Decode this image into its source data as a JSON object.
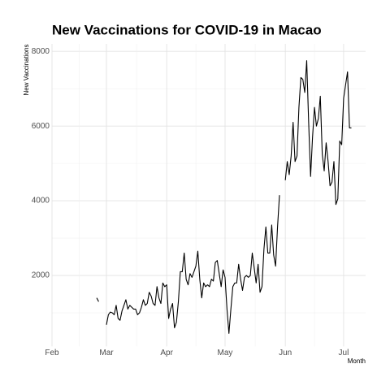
{
  "chart_data": {
    "type": "line",
    "title": "New Vaccinations for COVID-19 in Macao",
    "y_label": "New Vaccinations",
    "x_label": "Month",
    "color": "#000000",
    "grid": true,
    "ylim": [
      100,
      8200
    ],
    "yticks": [
      2000,
      4000,
      6000,
      8000
    ],
    "categories": [
      "Feb",
      null,
      null,
      null,
      null,
      null,
      null,
      null,
      null,
      null,
      null,
      null,
      null,
      null,
      null,
      null,
      null,
      null,
      null,
      null,
      null,
      null,
      null,
      null,
      null,
      null,
      null,
      null,
      "Mar",
      null,
      null,
      null,
      null,
      null,
      null,
      null,
      null,
      null,
      null,
      null,
      null,
      null,
      null,
      null,
      null,
      null,
      null,
      null,
      null,
      null,
      null,
      null,
      null,
      null,
      null,
      null,
      null,
      null,
      null,
      "Apr",
      null,
      null,
      null,
      null,
      null,
      null,
      null,
      null,
      null,
      null,
      null,
      null,
      null,
      null,
      null,
      null,
      null,
      null,
      null,
      null,
      null,
      null,
      null,
      null,
      null,
      null,
      null,
      null,
      null,
      "May",
      null,
      null,
      null,
      null,
      null,
      null,
      null,
      null,
      null,
      null,
      null,
      null,
      null,
      null,
      null,
      null,
      null,
      null,
      null,
      null,
      null,
      null,
      null,
      null,
      null,
      null,
      null,
      null,
      null,
      null,
      "Jun",
      null,
      null,
      null,
      null,
      null,
      null,
      null,
      null,
      null,
      null,
      null,
      null,
      null,
      null,
      null,
      null,
      null,
      null,
      null,
      null,
      null,
      null,
      null,
      null,
      null,
      null,
      null,
      null,
      null,
      "Jul",
      null,
      null,
      null,
      null
    ],
    "values": [
      null,
      null,
      null,
      null,
      null,
      null,
      null,
      null,
      null,
      null,
      null,
      null,
      null,
      null,
      null,
      null,
      null,
      null,
      null,
      null,
      null,
      null,
      null,
      1400,
      1300,
      null,
      null,
      null,
      680,
      950,
      1020,
      1000,
      950,
      1200,
      850,
      800,
      1050,
      1200,
      1350,
      1100,
      1200,
      1150,
      1100,
      1100,
      950,
      1000,
      1150,
      1350,
      1200,
      1250,
      1550,
      1450,
      1250,
      1200,
      1700,
      1400,
      1250,
      1800,
      1700,
      1750,
      850,
      1100,
      1250,
      600,
      750,
      1300,
      2100,
      2100,
      2600,
      1900,
      1750,
      2050,
      1950,
      2100,
      2250,
      2650,
      1900,
      1400,
      1800,
      1700,
      1750,
      1700,
      1900,
      1850,
      2350,
      2400,
      2050,
      1700,
      2150,
      1950,
      1100,
      450,
      1100,
      1700,
      1800,
      1800,
      2300,
      1900,
      1600,
      1950,
      2000,
      1950,
      2000,
      2600,
      2200,
      1800,
      2300,
      1550,
      1700,
      2700,
      3300,
      2600,
      2600,
      3350,
      2550,
      2250,
      3300,
      4150,
      null,
      null,
      4550,
      5050,
      4700,
      5200,
      6100,
      5050,
      5200,
      6500,
      7300,
      7250,
      6900,
      7750,
      6100,
      4650,
      5700,
      6500,
      6000,
      6200,
      6800,
      5250,
      4800,
      5550,
      5050,
      4400,
      4500,
      5050,
      3900,
      4050,
      5600,
      5500,
      6750,
      7100,
      7450,
      5950,
      5950
    ]
  }
}
